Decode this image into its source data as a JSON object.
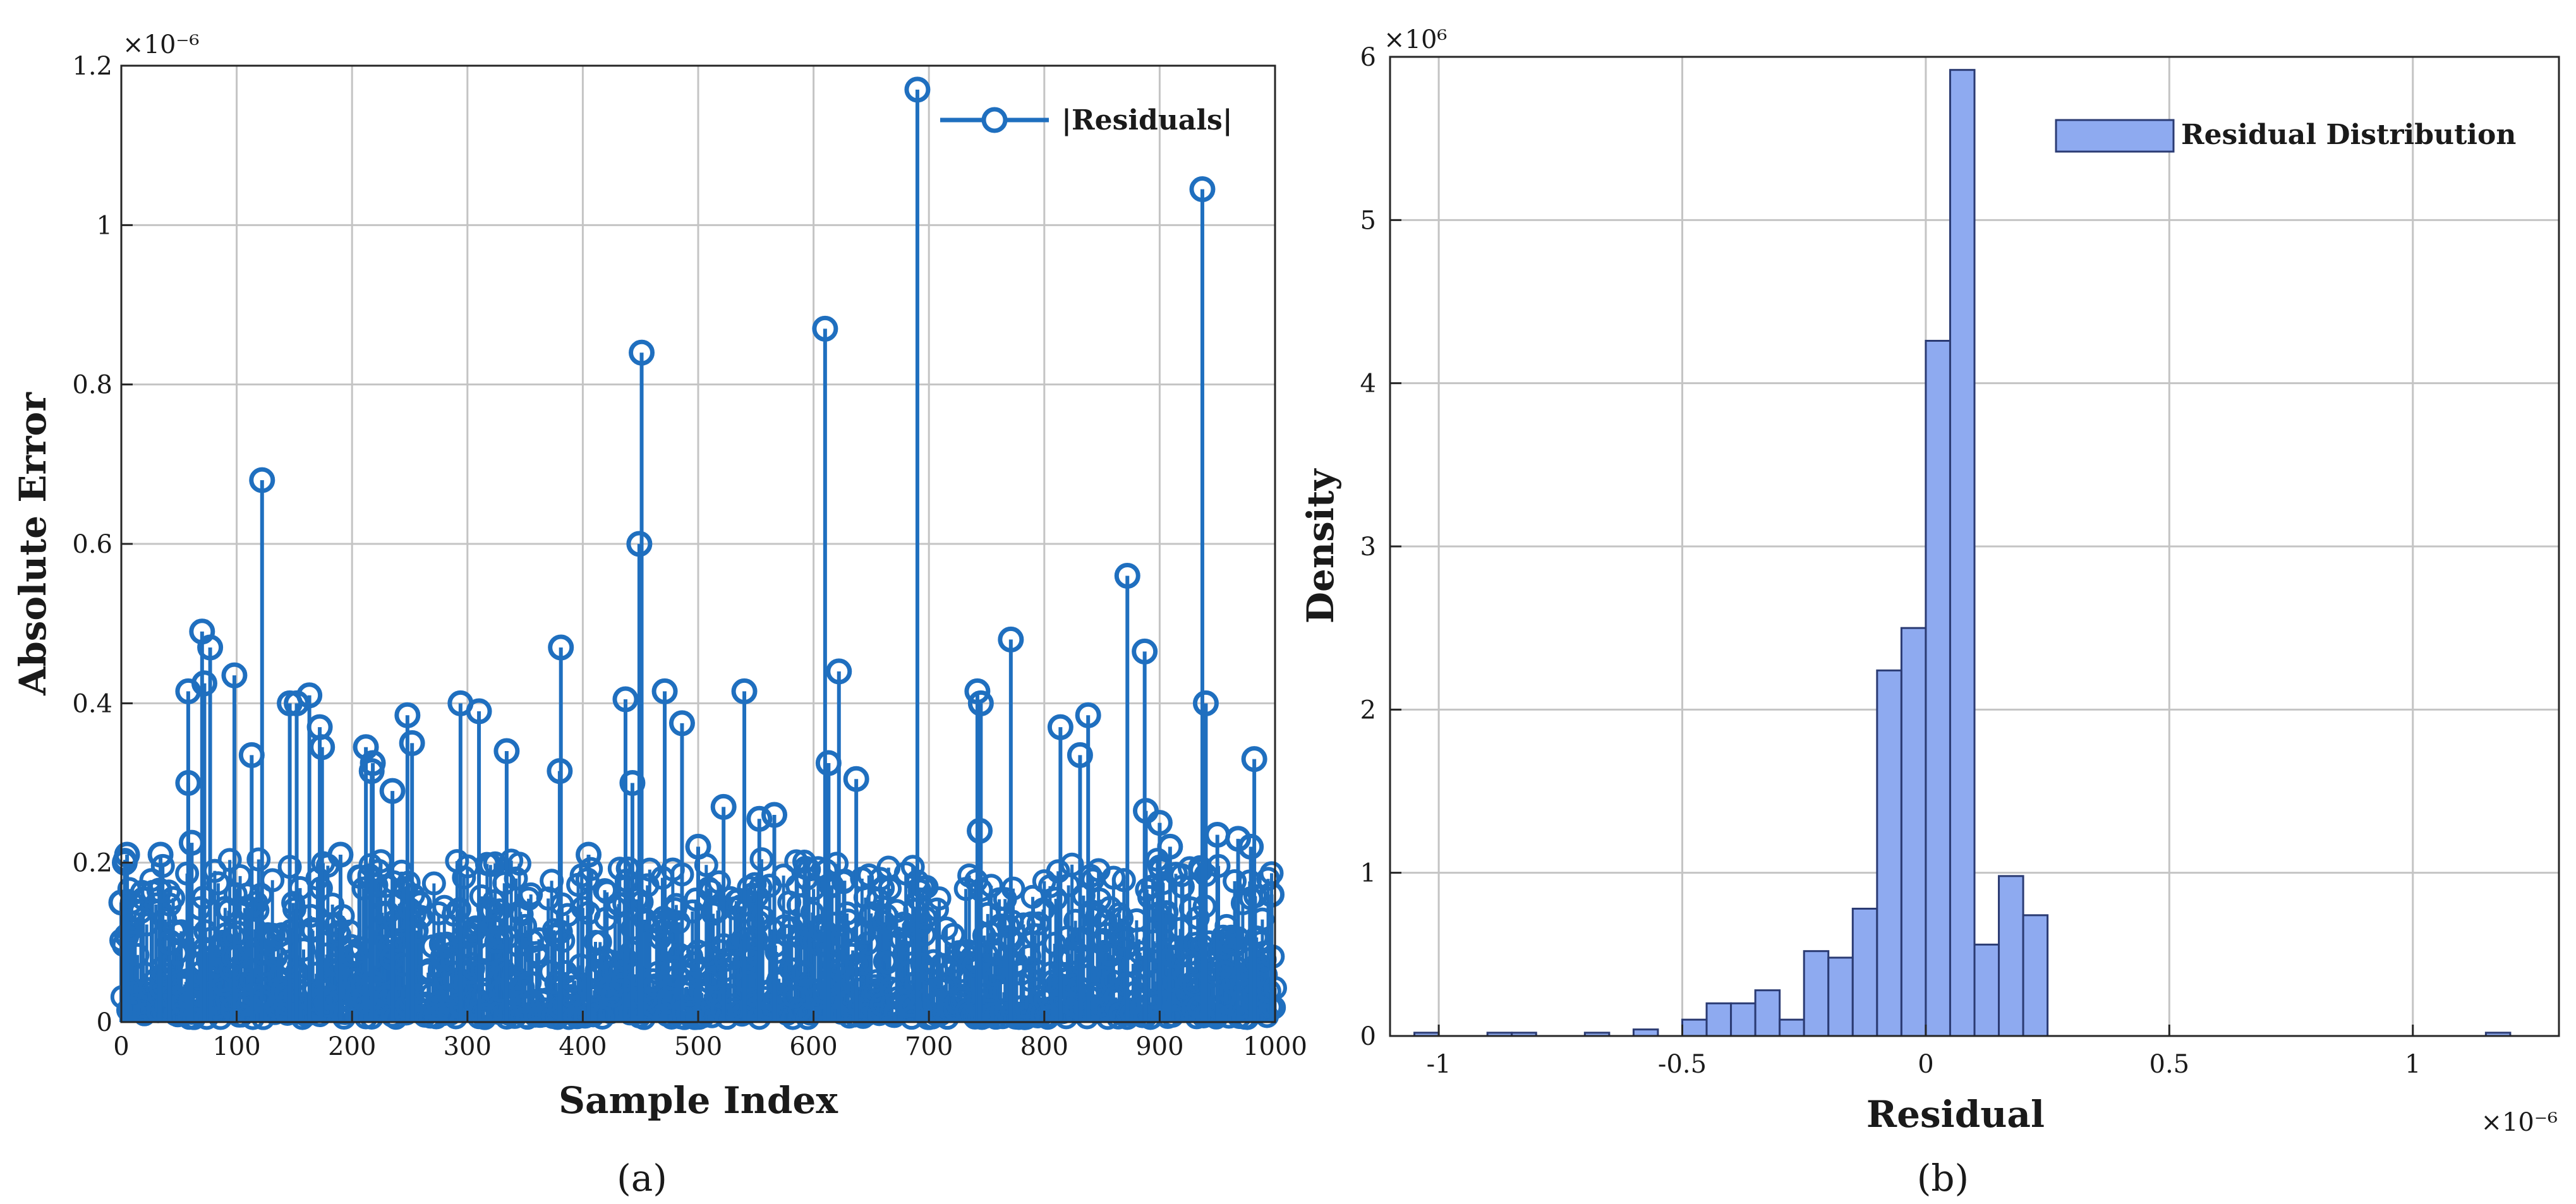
{
  "chart_data": [
    {
      "type": "stem",
      "panel_label": "(a)",
      "xlabel": "Sample Index",
      "ylabel": "Absolute Error",
      "y_exponent": "×10⁻⁶",
      "xlim": [
        0,
        1000
      ],
      "ylim": [
        0,
        1.2
      ],
      "x_ticks": [
        0,
        100,
        200,
        300,
        400,
        500,
        600,
        700,
        800,
        900,
        1000
      ],
      "y_ticks": [
        0,
        0.2,
        0.4,
        0.6,
        0.8,
        1,
        1.2
      ],
      "x_tick_labels": [
        "0",
        "100",
        "200",
        "300",
        "400",
        "500",
        "600",
        "700",
        "800",
        "900",
        "1000"
      ],
      "y_tick_labels": [
        "0",
        "0.2",
        "0.4",
        "0.6",
        "0.8",
        "1",
        "1.2"
      ],
      "grid": true,
      "legend": {
        "position": "top-right",
        "entries": [
          "|Residuals|"
        ]
      },
      "series": [
        {
          "name": "|Residuals|",
          "color": "#1f6fbf",
          "marker": "circle",
          "notable_points": [
            {
              "x": 690,
              "y": 1.17
            },
            {
              "x": 937,
              "y": 1.045
            },
            {
              "x": 610,
              "y": 0.87
            },
            {
              "x": 451,
              "y": 0.84
            },
            {
              "x": 122,
              "y": 0.68
            },
            {
              "x": 449,
              "y": 0.6
            },
            {
              "x": 872,
              "y": 0.56
            },
            {
              "x": 70,
              "y": 0.49
            },
            {
              "x": 771,
              "y": 0.48
            },
            {
              "x": 381,
              "y": 0.47
            },
            {
              "x": 77,
              "y": 0.47
            },
            {
              "x": 887,
              "y": 0.465
            },
            {
              "x": 622,
              "y": 0.44
            },
            {
              "x": 98,
              "y": 0.435
            },
            {
              "x": 72,
              "y": 0.425
            },
            {
              "x": 58,
              "y": 0.415
            },
            {
              "x": 471,
              "y": 0.415
            },
            {
              "x": 540,
              "y": 0.415
            },
            {
              "x": 742,
              "y": 0.415
            },
            {
              "x": 163,
              "y": 0.41
            },
            {
              "x": 437,
              "y": 0.405
            },
            {
              "x": 940,
              "y": 0.4
            },
            {
              "x": 146,
              "y": 0.4
            },
            {
              "x": 152,
              "y": 0.4
            },
            {
              "x": 294,
              "y": 0.4
            },
            {
              "x": 745,
              "y": 0.4
            },
            {
              "x": 310,
              "y": 0.39
            },
            {
              "x": 838,
              "y": 0.385
            },
            {
              "x": 248,
              "y": 0.385
            },
            {
              "x": 486,
              "y": 0.375
            },
            {
              "x": 172,
              "y": 0.37
            },
            {
              "x": 814,
              "y": 0.37
            },
            {
              "x": 212,
              "y": 0.345
            },
            {
              "x": 174,
              "y": 0.345
            },
            {
              "x": 252,
              "y": 0.35
            },
            {
              "x": 334,
              "y": 0.34
            },
            {
              "x": 113,
              "y": 0.335
            },
            {
              "x": 218,
              "y": 0.325
            },
            {
              "x": 831,
              "y": 0.335
            },
            {
              "x": 982,
              "y": 0.33
            },
            {
              "x": 613,
              "y": 0.325
            },
            {
              "x": 380,
              "y": 0.315
            },
            {
              "x": 217,
              "y": 0.315
            },
            {
              "x": 637,
              "y": 0.305
            },
            {
              "x": 58,
              "y": 0.3
            },
            {
              "x": 443,
              "y": 0.3
            },
            {
              "x": 235,
              "y": 0.29
            },
            {
              "x": 522,
              "y": 0.27
            },
            {
              "x": 888,
              "y": 0.265
            },
            {
              "x": 566,
              "y": 0.26
            },
            {
              "x": 553,
              "y": 0.255
            },
            {
              "x": 900,
              "y": 0.25
            },
            {
              "x": 744,
              "y": 0.24
            },
            {
              "x": 950,
              "y": 0.235
            },
            {
              "x": 968,
              "y": 0.23
            },
            {
              "x": 61,
              "y": 0.225
            },
            {
              "x": 909,
              "y": 0.22
            },
            {
              "x": 979,
              "y": 0.22
            },
            {
              "x": 500,
              "y": 0.22
            },
            {
              "x": 3,
              "y": 0.2
            },
            {
              "x": 5,
              "y": 0.21
            },
            {
              "x": 34,
              "y": 0.21
            },
            {
              "x": 190,
              "y": 0.21
            },
            {
              "x": 405,
              "y": 0.21
            },
            {
              "x": 997,
              "y": 0.16
            },
            {
              "x": 0,
              "y": 0.15
            },
            {
              "x": 33,
              "y": 0.165
            },
            {
              "x": 42,
              "y": 0.1
            }
          ]
        }
      ]
    },
    {
      "type": "histogram",
      "panel_label": "(b)",
      "xlabel": "Residual",
      "ylabel": "Density",
      "x_exponent": "×10⁻⁶",
      "y_exponent": "×10⁶",
      "xlim": [
        -1.1,
        1.3
      ],
      "ylim": [
        0,
        6
      ],
      "x_ticks": [
        -1,
        -0.5,
        0,
        0.5,
        1
      ],
      "y_ticks": [
        0,
        1,
        2,
        3,
        4,
        5,
        6
      ],
      "x_tick_labels": [
        "-1",
        "-0.5",
        "0",
        "0.5",
        "1"
      ],
      "y_tick_labels": [
        "0",
        "1",
        "2",
        "3",
        "4",
        "5",
        "6"
      ],
      "grid": true,
      "legend": {
        "position": "top-right",
        "entries": [
          "Residual Distribution"
        ]
      },
      "series": [
        {
          "name": "Residual Distribution",
          "color": "#8eaaf0",
          "bin_width": 0.05,
          "bins": [
            {
              "x0": -1.05,
              "value": 0.02
            },
            {
              "x0": -0.9,
              "value": 0.02
            },
            {
              "x0": -0.85,
              "value": 0.02
            },
            {
              "x0": -0.7,
              "value": 0.02
            },
            {
              "x0": -0.6,
              "value": 0.04
            },
            {
              "x0": -0.5,
              "value": 0.1
            },
            {
              "x0": -0.45,
              "value": 0.2
            },
            {
              "x0": -0.4,
              "value": 0.2
            },
            {
              "x0": -0.35,
              "value": 0.28
            },
            {
              "x0": -0.3,
              "value": 0.1
            },
            {
              "x0": -0.25,
              "value": 0.52
            },
            {
              "x0": -0.2,
              "value": 0.48
            },
            {
              "x0": -0.15,
              "value": 0.78
            },
            {
              "x0": -0.1,
              "value": 2.24
            },
            {
              "x0": -0.05,
              "value": 2.5
            },
            {
              "x0": 0.0,
              "value": 4.26
            },
            {
              "x0": 0.05,
              "value": 5.92
            },
            {
              "x0": 0.1,
              "value": 0.56
            },
            {
              "x0": 0.15,
              "value": 0.98
            },
            {
              "x0": 0.2,
              "value": 0.74
            },
            {
              "x0": 1.15,
              "value": 0.02
            }
          ]
        }
      ]
    }
  ]
}
